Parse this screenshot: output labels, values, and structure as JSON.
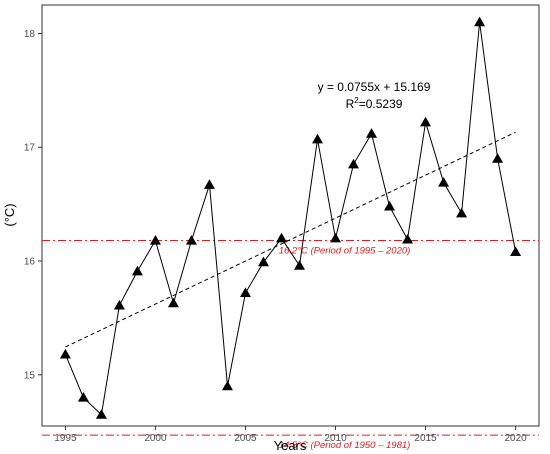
{
  "chart_data": {
    "type": "line",
    "xlabel": "Years",
    "ylabel": "(°C)",
    "xlim": [
      1993.7,
      2021.3
    ],
    "ylim": [
      14.55,
      18.25
    ],
    "grid": false,
    "x_ticks": [
      1995,
      2000,
      2005,
      2010,
      2015,
      2020
    ],
    "x_tick_labels": [
      "1995",
      "2000",
      "2005",
      "2010",
      "2015",
      "2020"
    ],
    "y_ticks": [
      15,
      16,
      17,
      18
    ],
    "y_tick_labels": [
      "15",
      "16",
      "17",
      "18"
    ],
    "series": [
      {
        "marker": "triangle",
        "color": "#000000",
        "x": [
          1995,
          1996,
          1997,
          1998,
          1999,
          2000,
          2001,
          2002,
          2003,
          2004,
          2005,
          2006,
          2007,
          2008,
          2009,
          2010,
          2011,
          2012,
          2013,
          2014,
          2015,
          2016,
          2017,
          2018,
          2019,
          2020
        ],
        "y": [
          15.18,
          14.8,
          14.65,
          15.61,
          15.91,
          16.18,
          15.63,
          16.18,
          16.67,
          14.9,
          15.72,
          15.99,
          16.2,
          15.96,
          17.07,
          16.2,
          16.85,
          17.12,
          16.48,
          16.19,
          17.22,
          16.69,
          16.42,
          18.1,
          16.9,
          16.08
        ]
      }
    ],
    "trendline": {
      "slope": 0.0755,
      "intercept": 15.169,
      "x_origin": 1995,
      "x_range": [
        1995,
        2020
      ],
      "style": "dashed",
      "color": "#000000",
      "equation": "y = 0.0755x + 15.169",
      "r2_prefix": "R",
      "r2_sup": "2",
      "r2_value": "=0.5239"
    },
    "reference_lines": [
      {
        "y": 16.18,
        "label": "16.2°C (Period of 1995 – 2020)",
        "color": "#e41a1c",
        "style": "dashdot"
      },
      {
        "y": 14.47,
        "label": "14.5°C (Period of 1950 – 1981)",
        "color": "#e41a1c",
        "style": "dashdot"
      }
    ]
  }
}
